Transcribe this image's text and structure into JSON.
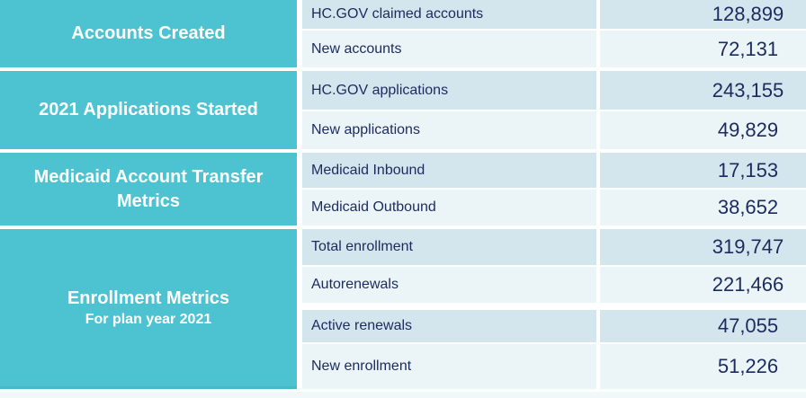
{
  "table": {
    "categories": [
      {
        "label": "Accounts Created",
        "sublabel": ""
      },
      {
        "label": "2021 Applications Started",
        "sublabel": ""
      },
      {
        "label": "Medicaid Account Transfer Metrics",
        "sublabel": ""
      },
      {
        "label": "Enrollment Metrics",
        "sublabel": "For plan year 2021"
      }
    ],
    "rows": [
      {
        "label": "HC.GOV claimed accounts",
        "value": "128,899"
      },
      {
        "label": "New accounts",
        "value": "72,131"
      },
      {
        "label": "HC.GOV applications",
        "value": "243,155"
      },
      {
        "label": "New applications",
        "value": "49,829"
      },
      {
        "label": "Medicaid Inbound",
        "value": "17,153"
      },
      {
        "label": "Medicaid Outbound",
        "value": "38,652"
      },
      {
        "label": "Total enrollment",
        "value": "319,747"
      },
      {
        "label": "Autorenewals",
        "value": "221,466"
      },
      {
        "label": "Active renewals",
        "value": "47,055"
      },
      {
        "label": "New enrollment",
        "value": "51,226"
      }
    ]
  },
  "colors": {
    "category_teal": "#4DC3D2",
    "row_dark": "#D3E6EE",
    "row_light": "#EBF5F8",
    "text_navy": "#1C2B5E",
    "category_text": "#FFFFFF",
    "separator": "#FFFFFF"
  }
}
